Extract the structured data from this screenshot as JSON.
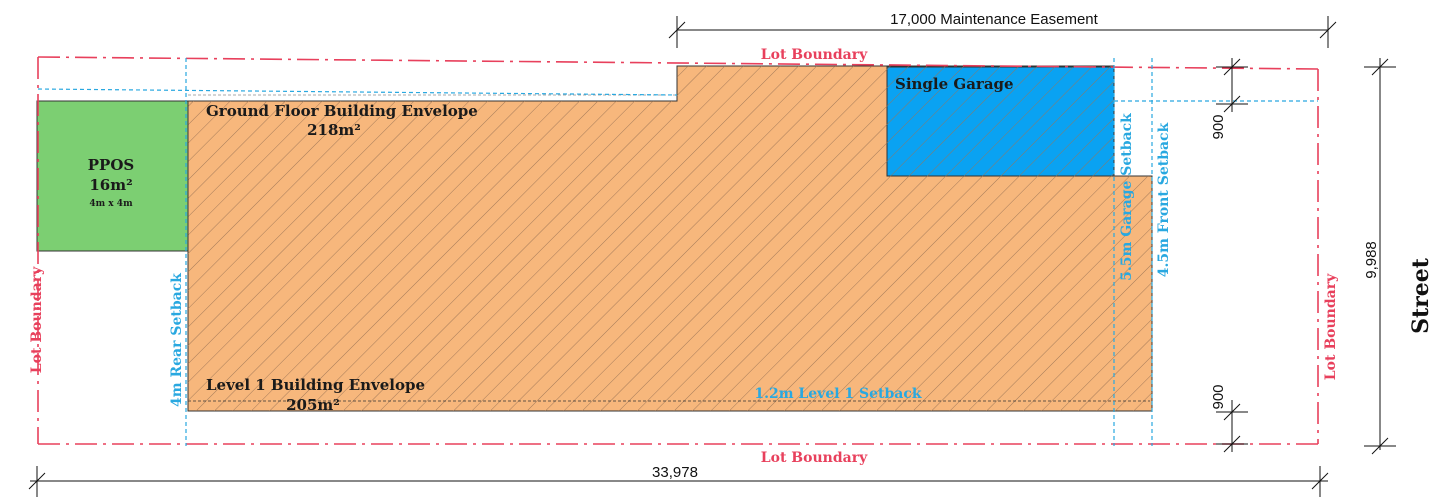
{
  "colors": {
    "envelope_fill": "#f7b77c",
    "ppos_fill": "#7ccf72",
    "garage_fill": "#0aa2f2",
    "boundary_red": "#e8405c",
    "setback_blue": "#29a8e0"
  },
  "labels": {
    "maintenance_easement": "17,000 Maintenance Easement",
    "lot_boundary_top": "Lot Boundary",
    "lot_boundary_bottom": "Lot Boundary",
    "lot_boundary_left": "Lot Boundary",
    "lot_boundary_right": "Lot Boundary",
    "single_garage": "Single Garage",
    "ground_floor_envelope": "Ground Floor Building Envelope",
    "ground_floor_area": "218m²",
    "ppos_title": "PPOS",
    "ppos_area": "16m²",
    "ppos_size": "4m x 4m",
    "garage_setback": "5.5m Garage Setback",
    "front_setback": "4.5m Front Setback",
    "rear_setback": "4m Rear Setback",
    "level1_envelope": "Level 1 Building Envelope",
    "level1_area": "205m²",
    "level1_setback": "1.2m Level 1 Setback",
    "dim_900_top": "900",
    "dim_900_bottom": "900",
    "dim_depth": "9,988",
    "dim_length": "33,978",
    "street": "Street"
  }
}
